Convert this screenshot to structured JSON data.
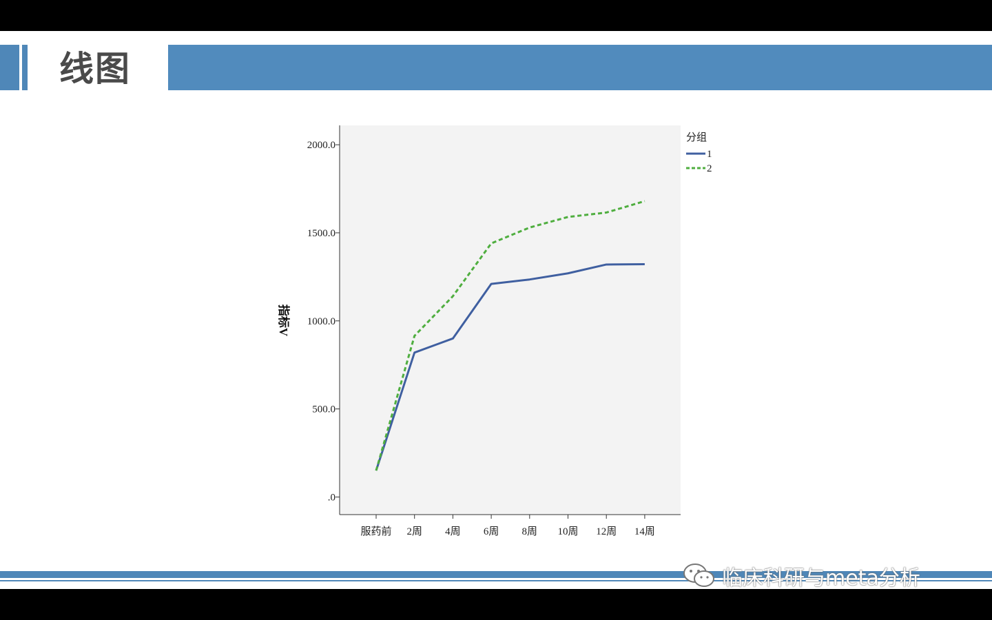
{
  "slide": {
    "title": "线图",
    "watermark": "临床科研与meta分析"
  },
  "colors": {
    "header": "#518bbd",
    "series1": "#3f5fa0",
    "series2": "#4fae3f",
    "plot_bg": "#f3f3f3"
  },
  "chart_data": {
    "type": "line",
    "title": "",
    "xlabel": "",
    "ylabel": "指标V",
    "categories": [
      "服药前",
      "2周",
      "4周",
      "6周",
      "8周",
      "10周",
      "12周",
      "14周"
    ],
    "ylim": [
      -100,
      2110
    ],
    "yticks": [
      0,
      500,
      1000,
      1500,
      2000
    ],
    "ytick_labels": [
      ".0",
      "500.0",
      "1000.0",
      "1500.0",
      "2000.0"
    ],
    "legend": {
      "title": "分组",
      "position": "right-top"
    },
    "series": [
      {
        "name": "1",
        "style": "solid",
        "color": "#3f5fa0",
        "values": [
          150,
          820,
          900,
          1210,
          1235,
          1270,
          1320,
          1322
        ]
      },
      {
        "name": "2",
        "style": "dashed",
        "color": "#4fae3f",
        "values": [
          150,
          915,
          1140,
          1440,
          1530,
          1590,
          1615,
          1680
        ]
      }
    ]
  }
}
